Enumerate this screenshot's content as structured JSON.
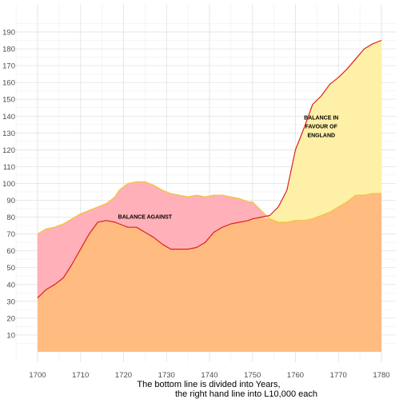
{
  "chart_data": {
    "type": "area",
    "title": "",
    "xlabel": "The bottom line is divided into Years,",
    "xlabel_line2": "the right hand line into L10,000 each",
    "ylabel": "",
    "xlim": [
      1700,
      1780
    ],
    "ylim": [
      0,
      190
    ],
    "x_ticks": [
      1700,
      1710,
      1720,
      1730,
      1740,
      1750,
      1760,
      1770,
      1780
    ],
    "y_ticks": [
      10,
      20,
      30,
      40,
      50,
      60,
      70,
      80,
      90,
      100,
      110,
      120,
      130,
      140,
      150,
      160,
      170,
      180,
      190
    ],
    "grid": true,
    "series": [
      {
        "key": "imports",
        "line_color": "#f4c542",
        "x": [
          1700,
          1702,
          1704,
          1706,
          1708,
          1710,
          1712,
          1714,
          1716,
          1718,
          1719,
          1721,
          1723,
          1725,
          1727,
          1729,
          1731,
          1733,
          1735,
          1737,
          1739,
          1741,
          1743,
          1745,
          1747,
          1749,
          1750,
          1752,
          1754,
          1756,
          1758,
          1760,
          1762,
          1764,
          1766,
          1768,
          1770,
          1772,
          1774,
          1776,
          1778,
          1780
        ],
        "y": [
          70,
          73,
          74,
          76,
          79,
          82,
          84,
          86,
          88,
          92,
          96,
          100,
          101,
          101,
          99,
          96,
          94,
          93,
          92,
          93,
          92,
          93,
          93,
          92,
          91,
          89,
          89,
          84,
          79,
          77,
          77,
          78,
          78,
          79,
          81,
          83,
          86,
          89,
          93,
          93,
          94,
          94
        ]
      },
      {
        "key": "exports",
        "line_color": "#dd2222",
        "x": [
          1700,
          1702,
          1704,
          1706,
          1708,
          1710,
          1712,
          1714,
          1716,
          1718,
          1719,
          1721,
          1723,
          1725,
          1727,
          1729,
          1731,
          1733,
          1735,
          1737,
          1739,
          1741,
          1743,
          1745,
          1747,
          1749,
          1750,
          1752,
          1754,
          1756,
          1758,
          1760,
          1762,
          1764,
          1766,
          1768,
          1770,
          1772,
          1774,
          1776,
          1778,
          1780
        ],
        "y": [
          32,
          37,
          40,
          44,
          52,
          61,
          70,
          77,
          78,
          77,
          76,
          74,
          74,
          71,
          68,
          64,
          61,
          61,
          61,
          62,
          65,
          71,
          74,
          76,
          77,
          78,
          79,
          80,
          81,
          86,
          96,
          120,
          133,
          147,
          152,
          159,
          163,
          168,
          174,
          180,
          183,
          185
        ]
      }
    ],
    "fills": {
      "base": "#ffbb80",
      "against": "#ffb0b8",
      "favour": "#fff0a8"
    },
    "annotations": [
      {
        "lines": [
          "BALANCE AGAINST"
        ],
        "x": 1725,
        "y": 79
      },
      {
        "lines": [
          "BALANCE IN",
          "FAVOUR OF",
          "ENGLAND"
        ],
        "x": 1766,
        "y": 138
      }
    ]
  }
}
